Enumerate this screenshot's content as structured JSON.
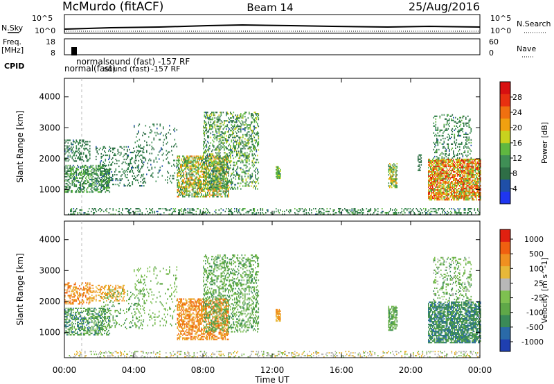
{
  "header": {
    "station": "McMurdo (fitACF)",
    "beam": "Beam 14",
    "date": "25/Aug/2016"
  },
  "status_panel": {
    "nsky_label": "N.Sky",
    "nsearch_label": "N.Search",
    "noise_ticks_left": [
      "10^5",
      "10^0"
    ],
    "noise_ticks_right": [
      "10^5",
      "10^0"
    ],
    "freq_label": "Freq.",
    "freq_unit": "[MHz]",
    "freq_ticks": [
      "18",
      "8"
    ],
    "nave_label": "Nave",
    "nave_ticks": [
      "60",
      "0"
    ],
    "cpid_label": "CPID",
    "cpid_entries": [
      "normalsound (fast) -157 RF",
      "normal(fast)",
      "sound (fast)",
      "-157 RF",
      "normal(fast)",
      "-157 RF"
    ]
  },
  "colors": {
    "power": [
      "#1f36f0",
      "#1f4fa8",
      "#2e6e46",
      "#3f8f55",
      "#5fb840",
      "#c8d21e",
      "#f0a010",
      "#f07010",
      "#e83010",
      "#d81010"
    ],
    "velocity": [
      "#1f3fb0",
      "#2a6aa8",
      "#3a8a58",
      "#5fa848",
      "#7ec050",
      "#b8b8b8",
      "#e8b838",
      "#f09020",
      "#f06010",
      "#e02010"
    ]
  },
  "chart_data": [
    {
      "type": "heatmap",
      "title": "Power",
      "xlabel": "",
      "ylabel": "Slant Range [km]",
      "x_ticks": [
        "00:00",
        "04:00",
        "08:00",
        "12:00",
        "16:00",
        "20:00",
        "00:00"
      ],
      "y_ticks": [
        1000,
        2000,
        3000,
        4000
      ],
      "xlim": [
        0,
        24
      ],
      "ylim": [
        180,
        4600
      ],
      "colorbar": {
        "label": "Power [dB]",
        "range": [
          0,
          32
        ],
        "ticks": [
          4,
          8,
          12,
          16,
          20,
          24,
          28
        ]
      },
      "patches": [
        {
          "t": [
            0.0,
            1.5
          ],
          "r": [
            1900,
            2600
          ],
          "level": [
            6,
            12
          ],
          "density": 0.35
        },
        {
          "t": [
            0.0,
            2.6
          ],
          "r": [
            900,
            1800
          ],
          "level": [
            6,
            16
          ],
          "density": 0.5
        },
        {
          "t": [
            1.8,
            4.6
          ],
          "r": [
            1100,
            2400
          ],
          "level": [
            6,
            12
          ],
          "density": 0.2
        },
        {
          "t": [
            4.0,
            6.5
          ],
          "r": [
            1200,
            3100
          ],
          "level": [
            6,
            12
          ],
          "density": 0.12
        },
        {
          "t": [
            6.5,
            9.5
          ],
          "r": [
            750,
            2100
          ],
          "level": [
            8,
            24
          ],
          "density": 0.6
        },
        {
          "t": [
            8.0,
            11.2
          ],
          "r": [
            1000,
            3500
          ],
          "level": [
            6,
            18
          ],
          "density": 0.35
        },
        {
          "t": [
            12.2,
            12.5
          ],
          "r": [
            1350,
            1750
          ],
          "level": [
            10,
            18
          ],
          "density": 0.8
        },
        {
          "t": [
            18.7,
            19.2
          ],
          "r": [
            1050,
            1850
          ],
          "level": [
            8,
            22
          ],
          "density": 0.6
        },
        {
          "t": [
            20.4,
            20.6
          ],
          "r": [
            1600,
            2100
          ],
          "level": [
            6,
            10
          ],
          "density": 0.5
        },
        {
          "t": [
            21.0,
            24.0
          ],
          "r": [
            650,
            2000
          ],
          "level": [
            12,
            30
          ],
          "density": 0.75
        },
        {
          "t": [
            21.3,
            23.5
          ],
          "r": [
            2000,
            3400
          ],
          "level": [
            6,
            14
          ],
          "density": 0.25
        },
        {
          "t": [
            0.2,
            24.0
          ],
          "r": [
            180,
            380
          ],
          "level": [
            6,
            14
          ],
          "density": 0.3
        }
      ]
    },
    {
      "type": "heatmap",
      "title": "Velocity",
      "xlabel": "Time UT",
      "ylabel": "Slant Range [km]",
      "x_ticks": [
        "00:00",
        "04:00",
        "08:00",
        "12:00",
        "16:00",
        "20:00",
        "00:00"
      ],
      "y_ticks": [
        1000,
        2000,
        3000,
        4000
      ],
      "xlim": [
        0,
        24
      ],
      "ylim": [
        180,
        4600
      ],
      "colorbar": {
        "label": "Velocity [m s^-1]",
        "ticks": [
          "1000",
          "500",
          "100",
          "25",
          "-25",
          "-100",
          "-500",
          "-1000"
        ]
      },
      "patches": [
        {
          "t": [
            0.0,
            1.5
          ],
          "r": [
            1900,
            2600
          ],
          "level": [
            6,
            8
          ],
          "density": 0.4
        },
        {
          "t": [
            1.5,
            3.5
          ],
          "r": [
            2000,
            2500
          ],
          "level": [
            6,
            7
          ],
          "density": 0.4
        },
        {
          "t": [
            0.0,
            2.6
          ],
          "r": [
            900,
            1800
          ],
          "level": [
            1,
            4
          ],
          "density": 0.5
        },
        {
          "t": [
            2.0,
            4.6
          ],
          "r": [
            1100,
            2400
          ],
          "level": [
            2,
            4
          ],
          "density": 0.15
        },
        {
          "t": [
            4.0,
            6.5
          ],
          "r": [
            1200,
            3100
          ],
          "level": [
            3,
            4
          ],
          "density": 0.1
        },
        {
          "t": [
            6.5,
            9.5
          ],
          "r": [
            750,
            2100
          ],
          "level": [
            6,
            8
          ],
          "density": 0.6
        },
        {
          "t": [
            8.0,
            11.2
          ],
          "r": [
            1000,
            3500
          ],
          "level": [
            2,
            4
          ],
          "density": 0.35
        },
        {
          "t": [
            12.2,
            12.5
          ],
          "r": [
            1350,
            1750
          ],
          "level": [
            6,
            7
          ],
          "density": 0.8
        },
        {
          "t": [
            18.7,
            19.2
          ],
          "r": [
            1050,
            1850
          ],
          "level": [
            2,
            4
          ],
          "density": 0.6
        },
        {
          "t": [
            21.0,
            24.0
          ],
          "r": [
            650,
            2000
          ],
          "level": [
            1,
            3
          ],
          "density": 0.75
        },
        {
          "t": [
            21.3,
            23.5
          ],
          "r": [
            2000,
            3400
          ],
          "level": [
            2,
            5
          ],
          "density": 0.25
        },
        {
          "t": [
            0.2,
            24.0
          ],
          "r": [
            180,
            380
          ],
          "level": [
            4,
            6
          ],
          "density": 0.25
        }
      ]
    }
  ]
}
